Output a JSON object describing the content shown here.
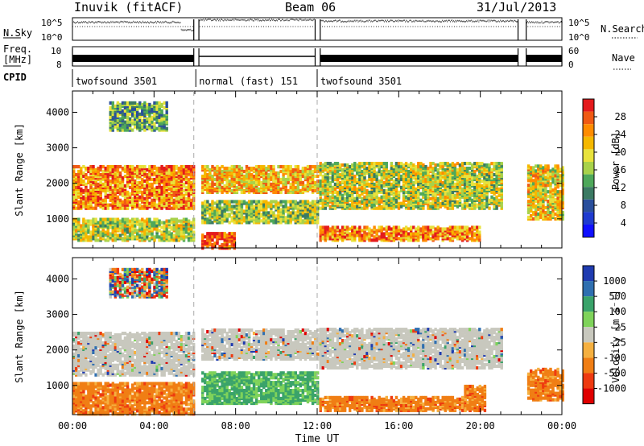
{
  "header": {
    "station": "Inuvik (fitACF)",
    "beam": "Beam 06",
    "date": "31/Jul/2013"
  },
  "chart_data": [
    {
      "type": "line",
      "name_label": "N.Sky",
      "right_label": "N.Search",
      "left_ticks": [
        "10^5",
        "10^0"
      ],
      "right_ticks": [
        "10^5",
        "10^0"
      ],
      "sky_level": [
        [
          0.0,
          0.8
        ],
        [
          4.3,
          0.8
        ],
        [
          5.3,
          0.45
        ],
        [
          5.95,
          0.45
        ],
        [
          6.2,
          0.9
        ],
        [
          12.0,
          0.9
        ],
        [
          12.2,
          0.85
        ],
        [
          21.9,
          0.85
        ],
        [
          22.2,
          0.8
        ],
        [
          24.0,
          0.8
        ]
      ],
      "gaps": [
        [
          5.95,
          6.2
        ],
        [
          11.9,
          12.15
        ],
        [
          21.85,
          22.25
        ]
      ]
    },
    {
      "type": "line",
      "name_label": "Freq.",
      "unit_label": "[MHz]",
      "right_label": "Nave",
      "left_ticks": [
        "10",
        "8"
      ],
      "right_ticks": [
        "60",
        "0"
      ],
      "gaps": [
        [
          5.95,
          6.2
        ],
        [
          11.9,
          12.15
        ],
        [
          21.85,
          22.25
        ]
      ]
    },
    {
      "type": "table",
      "name_label": "CPID",
      "modes": [
        {
          "label": "twofsound 3501",
          "start": 0.0,
          "end": 6.05
        },
        {
          "label": "normal (fast) 151",
          "start": 6.05,
          "end": 12.0
        },
        {
          "label": "twofsound 3501",
          "start": 12.0,
          "end": 24.0
        }
      ]
    },
    {
      "type": "heatmap",
      "quantity": "Power",
      "ylabel": "Slant Range [km]",
      "yticks": [
        1000,
        2000,
        3000,
        4000
      ],
      "ylim": [
        180,
        4600
      ],
      "xlim": [
        0,
        24
      ],
      "colorbar_label": "Power [dB]",
      "colorbar_ticks": [
        "28",
        "24",
        "20",
        "16",
        "12",
        "8",
        "4"
      ],
      "colorbar_colors": [
        "#e41a1c",
        "#f05a14",
        "#ff8c00",
        "#f5b800",
        "#e8e23c",
        "#a8d24a",
        "#4ea85a",
        "#3b7a63",
        "#2a4f9c",
        "#1f3bd0",
        "#1010ff"
      ],
      "bands": [
        {
          "x": [
            0.0,
            5.9
          ],
          "y": [
            1300,
            2500
          ],
          "level": 0.75
        },
        {
          "x": [
            6.2,
            12.0
          ],
          "y": [
            1750,
            2500
          ],
          "level": 0.65
        },
        {
          "x": [
            12.1,
            21.0
          ],
          "y": [
            1300,
            2600
          ],
          "level": 0.5
        },
        {
          "x": [
            12.1,
            20.0
          ],
          "y": [
            400,
            800
          ],
          "level": 0.75
        },
        {
          "x": [
            6.2,
            8.0
          ],
          "y": [
            180,
            600
          ],
          "level": 0.9
        },
        {
          "x": [
            6.2,
            12.0
          ],
          "y": [
            900,
            1500
          ],
          "level": 0.45
        },
        {
          "x": [
            0.0,
            5.9
          ],
          "y": [
            400,
            1000
          ],
          "level": 0.5
        },
        {
          "x": [
            22.3,
            24.0
          ],
          "y": [
            1000,
            2500
          ],
          "level": 0.6
        },
        {
          "x": [
            1.8,
            4.6
          ],
          "y": [
            3500,
            4300
          ],
          "level": 0.35
        }
      ]
    },
    {
      "type": "heatmap",
      "quantity": "Velocity",
      "ylabel": "Slant Range [km]",
      "xlabel": "Time UT",
      "yticks": [
        1000,
        2000,
        3000,
        4000
      ],
      "xticks": [
        "00:00",
        "04:00",
        "08:00",
        "12:00",
        "16:00",
        "20:00",
        "00:00"
      ],
      "ylim": [
        180,
        4600
      ],
      "xlim": [
        0,
        24
      ],
      "colorbar_label": "Velocity [m s⁻¹]",
      "colorbar_ticks": [
        "1000",
        "500",
        "100",
        "25",
        "-25",
        "-100",
        "-500",
        "-1000"
      ],
      "colorbar_colors": [
        "#1f3bb0",
        "#2f6fb0",
        "#3aa36a",
        "#7fd35a",
        "#c8c8be",
        "#f5b040",
        "#f07e14",
        "#ee3a10",
        "#e00000"
      ],
      "bands": [
        {
          "x": [
            0.0,
            5.9
          ],
          "y": [
            1300,
            2500
          ],
          "kind": "gray"
        },
        {
          "x": [
            6.2,
            12.0
          ],
          "y": [
            1750,
            2600
          ],
          "kind": "gray"
        },
        {
          "x": [
            12.1,
            21.0
          ],
          "y": [
            1500,
            2600
          ],
          "kind": "gray"
        },
        {
          "x": [
            0.0,
            5.9
          ],
          "y": [
            200,
            1100
          ],
          "kind": "orange"
        },
        {
          "x": [
            12.1,
            20.0
          ],
          "y": [
            300,
            700
          ],
          "kind": "orange"
        },
        {
          "x": [
            19.2,
            20.2
          ],
          "y": [
            300,
            1000
          ],
          "kind": "orange"
        },
        {
          "x": [
            22.3,
            24.0
          ],
          "y": [
            600,
            1500
          ],
          "kind": "orange"
        },
        {
          "x": [
            6.2,
            12.0
          ],
          "y": [
            500,
            1400
          ],
          "kind": "green"
        },
        {
          "x": [
            1.8,
            4.6
          ],
          "y": [
            3500,
            4300
          ],
          "kind": "mixed"
        }
      ]
    }
  ]
}
